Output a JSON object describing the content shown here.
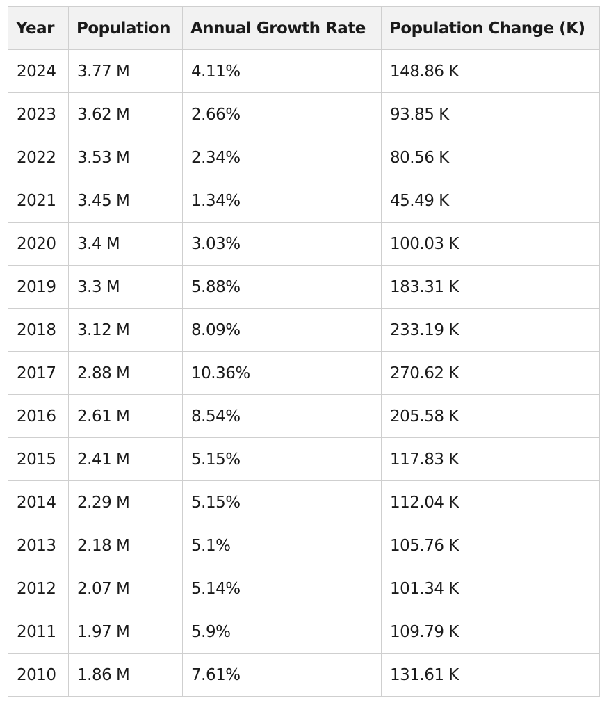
{
  "table": {
    "header": [
      "Year",
      "Population",
      "Annual Growth Rate",
      "Population Change (K)"
    ],
    "rows": [
      [
        "2024",
        "3.77 M",
        "4.11%",
        "148.86 K"
      ],
      [
        "2023",
        "3.62 M",
        "2.66%",
        "93.85 K"
      ],
      [
        "2022",
        "3.53 M",
        "2.34%",
        "80.56 K"
      ],
      [
        "2021",
        "3.45 M",
        "1.34%",
        "45.49 K"
      ],
      [
        "2020",
        "3.4 M",
        "3.03%",
        "100.03 K"
      ],
      [
        "2019",
        "3.3 M",
        "5.88%",
        "183.31 K"
      ],
      [
        "2018",
        "3.12 M",
        "8.09%",
        "233.19 K"
      ],
      [
        "2017",
        "2.88 M",
        "10.36%",
        "270.62 K"
      ],
      [
        "2016",
        "2.61 M",
        "8.54%",
        "205.58 K"
      ],
      [
        "2015",
        "2.41 M",
        "5.15%",
        "117.83 K"
      ],
      [
        "2014",
        "2.29 M",
        "5.15%",
        "112.04 K"
      ],
      [
        "2013",
        "2.18 M",
        "5.1%",
        "105.76 K"
      ],
      [
        "2012",
        "2.07 M",
        "5.14%",
        "101.34 K"
      ],
      [
        "2011",
        "1.97 M",
        "5.9%",
        "109.79 K"
      ],
      [
        "2010",
        "1.86 M",
        "7.61%",
        "131.61 K"
      ]
    ]
  }
}
